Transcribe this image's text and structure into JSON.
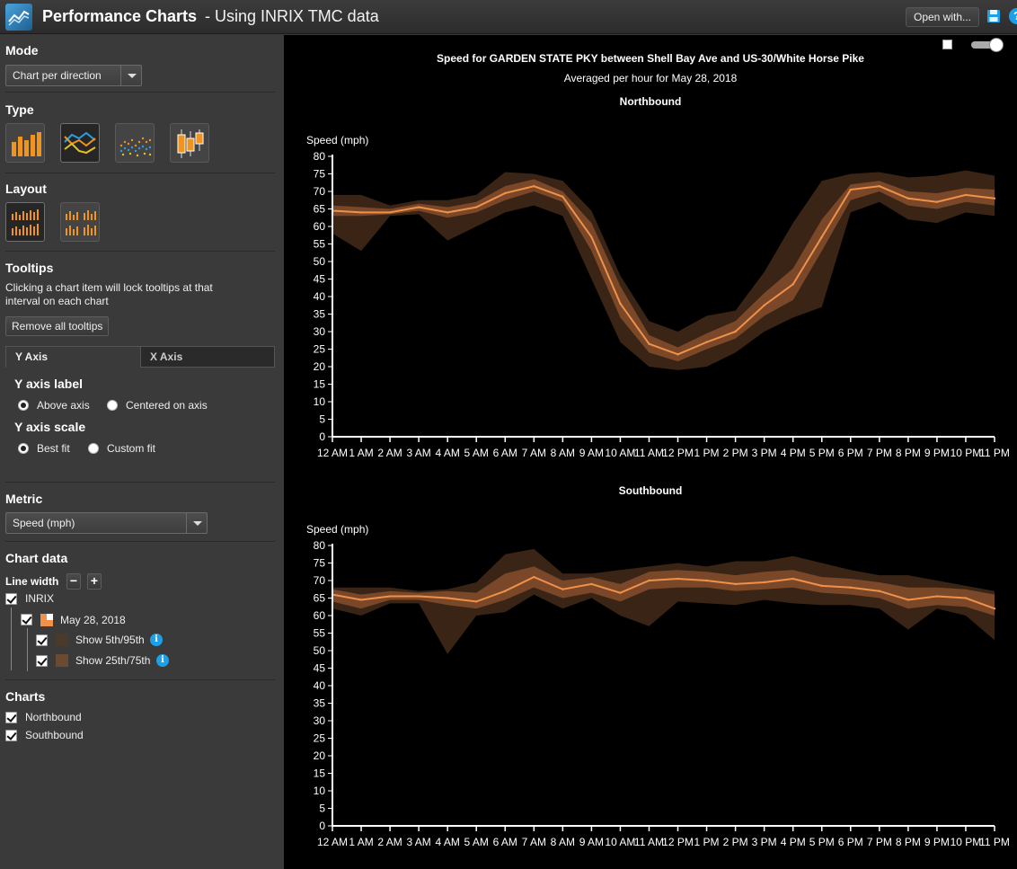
{
  "header": {
    "title": "Performance Charts",
    "subtitle": "- Using INRIX TMC data",
    "open_with": "Open with...",
    "help": "?"
  },
  "sidebar": {
    "mode": {
      "title": "Mode",
      "value": "Chart per direction"
    },
    "type": {
      "title": "Type",
      "options": [
        "bar-chart",
        "line-chart",
        "scatter-chart",
        "box-plot"
      ],
      "selected": 1
    },
    "layout": {
      "title": "Layout",
      "options": [
        "single-column",
        "two-column"
      ],
      "selected": 0
    },
    "tooltips": {
      "title": "Tooltips",
      "description": "Clicking a chart item will lock tooltips at that interval on each chart",
      "remove_button": "Remove all tooltips"
    },
    "axis_tabs": [
      "Y Axis",
      "X Axis"
    ],
    "y_axis_label": {
      "title": "Y axis label",
      "options": [
        "Above axis",
        "Centered on axis"
      ],
      "selected": 0
    },
    "y_axis_scale": {
      "title": "Y axis scale",
      "options": [
        "Best fit",
        "Custom fit"
      ],
      "selected": 0
    },
    "metric": {
      "title": "Metric",
      "value": "Speed (mph)"
    },
    "chart_data": {
      "title": "Chart data",
      "line_width_label": "Line width",
      "minus": "−",
      "plus": "+",
      "source": "INRIX",
      "date": "May 28, 2018",
      "show_5_95": "Show 5th/95th",
      "show_25_75": "Show 25th/75th",
      "info": "i"
    },
    "charts": {
      "title": "Charts",
      "items": [
        "Northbound",
        "Southbound"
      ]
    }
  },
  "colors": {
    "line": "#f0914a",
    "band_25_75": "#7a4828",
    "band_5_95": "#3a2415",
    "accent_blue": "#1ea0e8"
  },
  "main": {
    "title": "Speed for GARDEN STATE PKY between Shell Bay Ave and US-30/White Horse Pike",
    "subtitle": "Averaged per hour for May 28, 2018"
  },
  "chart_data": [
    {
      "type": "line",
      "title": "Northbound",
      "ylabel": "Speed (mph)",
      "ylim": [
        0,
        80
      ],
      "yticks": [
        0,
        5,
        10,
        15,
        20,
        25,
        30,
        35,
        40,
        45,
        50,
        55,
        60,
        65,
        70,
        75,
        80
      ],
      "categories": [
        "12 AM",
        "1 AM",
        "2 AM",
        "3 AM",
        "4 AM",
        "5 AM",
        "6 AM",
        "7 AM",
        "8 AM",
        "9 AM",
        "10 AM",
        "11 AM",
        "12 PM",
        "1 PM",
        "2 PM",
        "3 PM",
        "4 PM",
        "5 PM",
        "6 PM",
        "7 PM",
        "8 PM",
        "9 PM",
        "10 PM",
        "11 PM"
      ],
      "series": [
        {
          "name": "",
          "values": [
            64.5,
            64,
            64,
            65.5,
            64,
            65.5,
            69.5,
            71.5,
            68.5,
            57,
            38,
            26.5,
            23.5,
            27,
            30,
            37.5,
            43.5,
            57,
            70.5,
            71.5,
            68,
            67,
            69,
            68
          ]
        }
      ],
      "p25": [
        63,
        63,
        63.5,
        64.5,
        62.5,
        64,
        67.5,
        70,
        67,
        53,
        34,
        24,
        21.5,
        25,
        28,
        34.5,
        39,
        53,
        67.5,
        70,
        66,
        65,
        67,
        66
      ],
      "p75": [
        66,
        65.5,
        65,
        66.5,
        65.5,
        67,
        71.5,
        73.5,
        70,
        61,
        43,
        29,
        25.5,
        29.5,
        33,
        41,
        48,
        62,
        72,
        73,
        70,
        69.5,
        71,
        70.5
      ],
      "p5": [
        58,
        53,
        63,
        63.5,
        56,
        60,
        64,
        66,
        63,
        45,
        27,
        20,
        19,
        20,
        24,
        30,
        34,
        37,
        64,
        67,
        62,
        61,
        64,
        63
      ],
      "p95": [
        69,
        69,
        66,
        67.5,
        67.5,
        69,
        75.5,
        75,
        73,
        64.5,
        46,
        33,
        30,
        34.5,
        36,
        47,
        61,
        73,
        75,
        75.5,
        74,
        74.5,
        76,
        74.5
      ]
    },
    {
      "type": "line",
      "title": "Southbound",
      "ylabel": "Speed (mph)",
      "ylim": [
        0,
        80
      ],
      "yticks": [
        0,
        5,
        10,
        15,
        20,
        25,
        30,
        35,
        40,
        45,
        50,
        55,
        60,
        65,
        70,
        75,
        80
      ],
      "categories": [
        "12 AM",
        "1 AM",
        "2 AM",
        "3 AM",
        "4 AM",
        "5 AM",
        "6 AM",
        "7 AM",
        "8 AM",
        "9 AM",
        "10 AM",
        "11 AM",
        "12 PM",
        "1 PM",
        "2 PM",
        "3 PM",
        "4 PM",
        "5 PM",
        "6 PM",
        "7 PM",
        "8 PM",
        "9 PM",
        "10 PM",
        "11 PM"
      ],
      "series": [
        {
          "name": "",
          "values": [
            66,
            64.5,
            65.5,
            65.5,
            65,
            64,
            67,
            71,
            67.5,
            69,
            66.5,
            70,
            70.5,
            70,
            69,
            69.5,
            70.5,
            68.5,
            68,
            67,
            64.5,
            65.5,
            65,
            62
          ]
        }
      ],
      "p25": [
        64,
        62,
        64.5,
        64.5,
        63,
        62,
        64.5,
        68,
        65,
        66.5,
        64,
        67.5,
        68,
        68,
        67,
        67.5,
        68,
        66.5,
        66,
        65,
        62,
        63,
        62.5,
        60
      ],
      "p75": [
        67.5,
        66,
        67,
        66.5,
        67,
        66.5,
        72,
        74,
        70,
        71,
        69,
        72.5,
        73,
        72.5,
        71.5,
        72.5,
        73,
        71,
        70.5,
        69.5,
        68,
        68,
        67.5,
        66
      ],
      "p5": [
        62,
        60,
        63.5,
        63.5,
        49,
        60,
        61,
        66,
        62,
        65,
        60,
        57,
        64,
        63.5,
        63,
        64.5,
        63.5,
        63,
        63,
        62,
        56,
        62,
        60,
        53
      ],
      "p95": [
        68,
        68,
        68,
        67,
        67.5,
        69.5,
        77.5,
        79,
        72,
        72,
        73,
        74,
        75,
        74,
        75.5,
        75.5,
        77,
        75,
        73,
        71.5,
        71.5,
        70,
        68.5,
        67
      ]
    }
  ]
}
